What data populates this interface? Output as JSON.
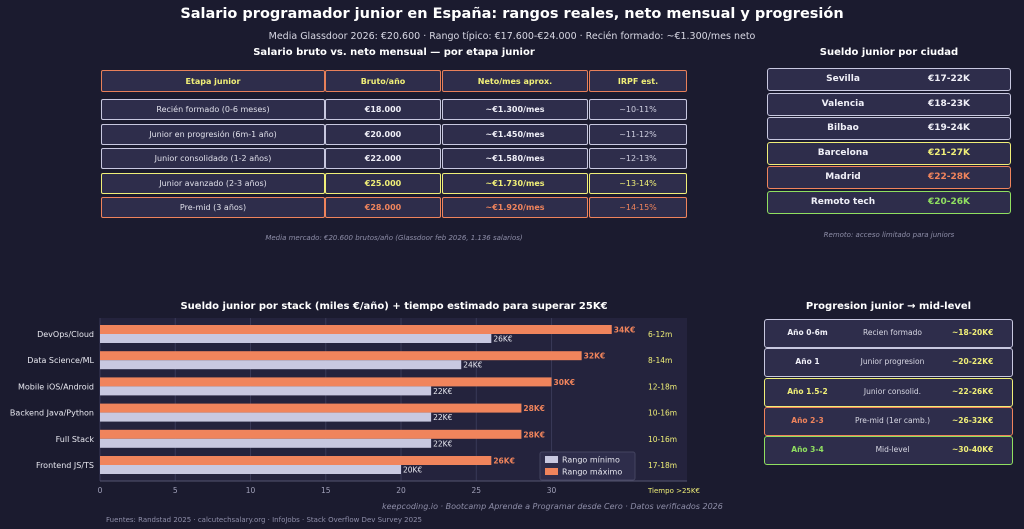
{
  "header": {
    "title": "Salario programador junior en España: rangos reales, neto mensual y progresión",
    "subtitle": "Media Glassdoor 2026: €20.600 · Rango típico: €17.600-€24.000 · Recién formado: ~€1.300/mes neto"
  },
  "colors": {
    "background": "#1b1b2f",
    "panel": "#2e2d4b",
    "lavender": "#c8c8e0",
    "yellow": "#f0ef78",
    "orange": "#f0845c",
    "green": "#90e060"
  },
  "table": {
    "title": "Salario bruto vs. neto mensual — por etapa junior",
    "headers": [
      "Etapa junior",
      "Bruto/año",
      "Neto/mes aprox.",
      "IRPF est."
    ],
    "rows": [
      {
        "etapa": "Recién formado (0-6 meses)",
        "bruto": "€18.000",
        "neto": "~€1.300/mes",
        "irpf": "~10-11%",
        "tone": "lavender"
      },
      {
        "etapa": "Junior en progresión (6m-1 año)",
        "bruto": "€20.000",
        "neto": "~€1.450/mes",
        "irpf": "~11-12%",
        "tone": "lavender"
      },
      {
        "etapa": "Junior consolidado (1-2 años)",
        "bruto": "€22.000",
        "neto": "~€1.580/mes",
        "irpf": "~12-13%",
        "tone": "lavender"
      },
      {
        "etapa": "Junior avanzado (2-3 años)",
        "bruto": "€25.000",
        "neto": "~€1.730/mes",
        "irpf": "~13-14%",
        "tone": "yellow"
      },
      {
        "etapa": "Pre-mid (3 años)",
        "bruto": "€28.000",
        "neto": "~€1.920/mes",
        "irpf": "~14-15%",
        "tone": "orange"
      }
    ],
    "note": "Media mercado: €20.600 brutos/año (Glassdoor feb 2026, 1.136 salarios)"
  },
  "cities": {
    "title": "Sueldo junior por ciudad",
    "items": [
      {
        "city": "Sevilla",
        "range": "€17-22K",
        "tone": "lavender"
      },
      {
        "city": "Valencia",
        "range": "€18-23K",
        "tone": "lavender"
      },
      {
        "city": "Bilbao",
        "range": "€19-24K",
        "tone": "lavender"
      },
      {
        "city": "Barcelona",
        "range": "€21-27K",
        "tone": "yellow"
      },
      {
        "city": "Madrid",
        "range": "€22-28K",
        "tone": "orange"
      },
      {
        "city": "Remoto tech",
        "range": "€20-26K",
        "tone": "green"
      }
    ],
    "note": "Remoto: acceso limitado para juniors"
  },
  "progression": {
    "title": "Progresion junior → mid-level",
    "items": [
      {
        "year": "Año 0-6m",
        "stage": "Recien formado",
        "salary": "~18-20K€",
        "tone": "lavender"
      },
      {
        "year": "Año 1",
        "stage": "Junior progresion",
        "salary": "~20-22K€",
        "tone": "lavender"
      },
      {
        "year": "Año 1.5-2",
        "stage": "Junior consolid.",
        "salary": "~22-26K€",
        "tone": "yellow"
      },
      {
        "year": "Año 2-3",
        "stage": "Pre-mid (1er camb.)",
        "salary": "~26-32K€",
        "tone": "orange"
      },
      {
        "year": "Año 3-4",
        "stage": "Mid-level",
        "salary": "~30-40K€",
        "tone": "green"
      }
    ]
  },
  "chart_data": {
    "type": "bar",
    "orientation": "horizontal",
    "title": "Sueldo junior por stack (miles €/año) + tiempo estimado para superar 25K€",
    "categories": [
      "DevOps/Cloud",
      "Data Science/ML",
      "Mobile iOS/Android",
      "Backend Java/Python",
      "Full Stack",
      "Frontend JS/TS"
    ],
    "series": [
      {
        "name": "Rango mínimo",
        "values": [
          26,
          24,
          22,
          22,
          22,
          20
        ],
        "labels": [
          "26K€",
          "24K€",
          "22K€",
          "22K€",
          "22K€",
          "20K€"
        ],
        "color": "#c8c8e0"
      },
      {
        "name": "Rango máximo",
        "values": [
          34,
          32,
          30,
          28,
          28,
          26
        ],
        "labels": [
          "34K€",
          "32K€",
          "30K€",
          "28K€",
          "28K€",
          "26K€"
        ],
        "color": "#f0845c"
      }
    ],
    "time_labels": [
      "6-12m",
      "8-14m",
      "12-18m",
      "10-16m",
      "10-16m",
      "17-18m"
    ],
    "time_axis_label": "Tiempo >25K€",
    "xticks": [
      0,
      5,
      10,
      15,
      20,
      25,
      30
    ],
    "xlim": [
      0,
      39
    ],
    "grid": true,
    "legend": "bottom-right"
  },
  "footer": {
    "brand": "keepcoding.io  ·  Bootcamp Aprende a Programar desde Cero  ·  Datos verificados 2026",
    "sources": "Fuentes: Randstad 2025 · calcutechsalary.org · InfoJobs · Stack Overflow Dev Survey 2025"
  }
}
